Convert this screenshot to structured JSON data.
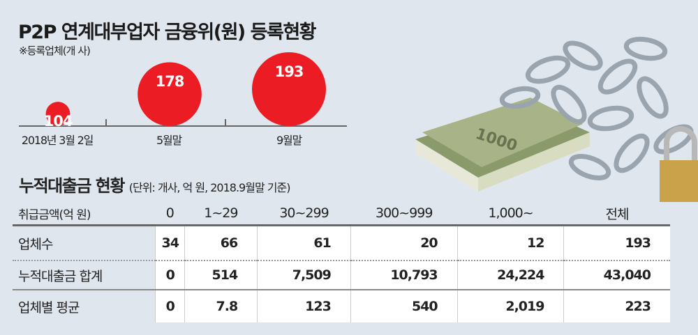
{
  "chart_data": [
    {
      "type": "bubble",
      "title": "P2P 연계대부업자 금융위(원) 등록현황",
      "subtitle": "※등록업체(개 사)",
      "categories": [
        "2018년 3월 2일",
        "5월말",
        "9월말"
      ],
      "values": [
        104,
        178,
        193
      ],
      "bubble_color": "#ec1c24"
    },
    {
      "type": "table",
      "title": "누적대출금 현황",
      "subtitle": "(단위: 개사, 억 원, 2018.9월말 기준)",
      "columns": [
        "취급금액(억 원)",
        "0",
        "1~29",
        "30~299",
        "300~999",
        "1,000~",
        "전체"
      ],
      "rows": [
        {
          "label": "업체수",
          "values": [
            "34",
            "66",
            "61",
            "20",
            "12",
            "193"
          ]
        },
        {
          "label": "누적대출금 합계",
          "values": [
            "0",
            "514",
            "7,509",
            "10,793",
            "24,224",
            "43,040"
          ]
        },
        {
          "label": "업체별 평균",
          "values": [
            "0",
            "7.8",
            "123",
            "540",
            "2,019",
            "223"
          ]
        }
      ]
    }
  ],
  "photo": "chained-money-with-padlock"
}
